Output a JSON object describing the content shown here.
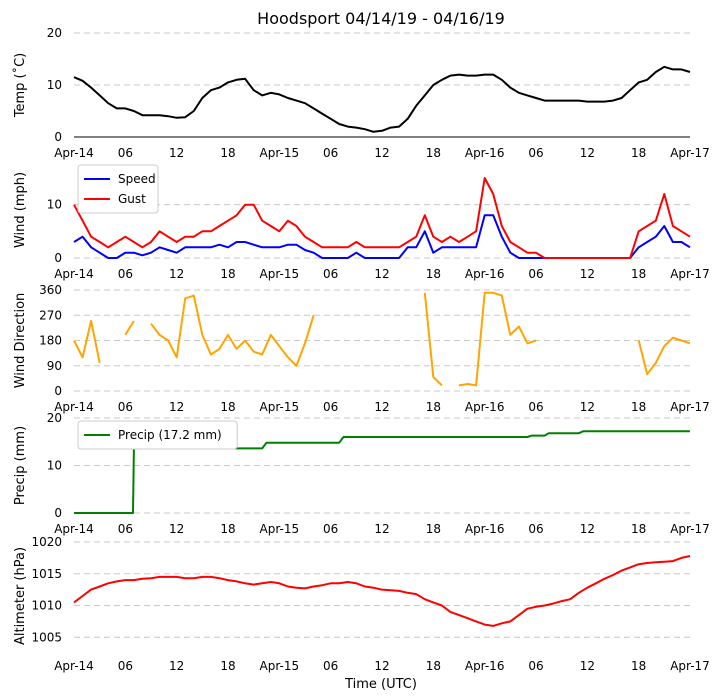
{
  "figure": {
    "title": "Hoodsport 04/14/19 - 04/16/19",
    "xlabel": "Time (UTC)"
  },
  "x_axis": {
    "tick_labels": [
      "Apr-14",
      "06",
      "12",
      "18",
      "Apr-15",
      "06",
      "12",
      "18",
      "Apr-16",
      "06",
      "12",
      "18",
      "Apr-17"
    ],
    "hours": [
      0,
      6,
      12,
      18,
      24,
      30,
      36,
      42,
      48,
      54,
      60,
      66,
      72
    ],
    "xlim": [
      0,
      72
    ]
  },
  "chart_data": [
    {
      "type": "line",
      "name": "temperature",
      "ylabel": "Temp ($^\\circ$C)",
      "ylabel_display": "Temp (˚C)",
      "ylim": [
        0,
        20
      ],
      "yticks": [
        0,
        10,
        20
      ],
      "grid": "y-dashed",
      "series": [
        {
          "name": "",
          "color": "#000000",
          "x": [
            0,
            1,
            2,
            3,
            4,
            5,
            6,
            7,
            8,
            9,
            10,
            11,
            12,
            13,
            14,
            15,
            16,
            17,
            18,
            19,
            20,
            21,
            22,
            23,
            24,
            25,
            26,
            27,
            28,
            29,
            30,
            31,
            32,
            33,
            34,
            35,
            36,
            37,
            38,
            39,
            40,
            41,
            42,
            43,
            44,
            45,
            46,
            47,
            48,
            49,
            50,
            51,
            52,
            53,
            54,
            55,
            56,
            57,
            58,
            59,
            60,
            61,
            62,
            63,
            64,
            65,
            66,
            67,
            68,
            69,
            70,
            71,
            72
          ],
          "y": [
            11.5,
            10.8,
            9.5,
            8,
            6.5,
            5.5,
            5.5,
            5,
            4.2,
            4.2,
            4.2,
            4,
            3.7,
            3.8,
            5,
            7.5,
            9,
            9.5,
            10.5,
            11,
            11.2,
            9,
            8,
            8.5,
            8.2,
            7.5,
            7,
            6.5,
            5.5,
            4.5,
            3.5,
            2.5,
            2,
            1.8,
            1.5,
            1,
            1.2,
            1.8,
            2,
            3.5,
            6,
            8,
            10,
            11,
            11.8,
            12,
            11.8,
            11.8,
            12,
            12,
            11,
            9.5,
            8.5,
            8,
            7.5,
            7,
            7,
            7,
            7,
            7,
            6.8,
            6.8,
            6.8,
            7,
            7.5,
            9,
            10.5,
            11,
            12.5,
            13.5,
            13,
            13,
            12.5
          ]
        }
      ]
    },
    {
      "type": "line",
      "name": "wind",
      "ylabel": "Wind (mph)",
      "ylim": [
        0,
        18
      ],
      "yticks": [
        0,
        10
      ],
      "grid": "y-dashed",
      "legend": "upper-left",
      "series": [
        {
          "name": "Speed",
          "color": "#0000ff",
          "x": [
            0,
            1,
            2,
            3,
            4,
            5,
            6,
            7,
            8,
            9,
            10,
            11,
            12,
            13,
            14,
            15,
            16,
            17,
            18,
            19,
            20,
            21,
            22,
            23,
            24,
            25,
            26,
            27,
            28,
            29,
            30,
            31,
            32,
            33,
            34,
            35,
            36,
            37,
            38,
            39,
            40,
            41,
            42,
            43,
            44,
            45,
            46,
            47,
            48,
            49,
            50,
            51,
            52,
            53,
            54,
            55,
            56,
            57,
            58,
            59,
            60,
            61,
            62,
            63,
            64,
            65,
            66,
            67,
            68,
            69,
            70,
            71,
            72
          ],
          "y": [
            3,
            4,
            2,
            1,
            0,
            0,
            1,
            1,
            0.5,
            1,
            2,
            1.5,
            1,
            2,
            2,
            2,
            2,
            2.5,
            2,
            3,
            3,
            2.5,
            2,
            2,
            2,
            2.5,
            2.5,
            1.5,
            1,
            0,
            0,
            0,
            0,
            1,
            0,
            0,
            0,
            0,
            0,
            2,
            2,
            5,
            1,
            2,
            2,
            2,
            2,
            2,
            8,
            8,
            4,
            1,
            0,
            0,
            0,
            0,
            0,
            0,
            0,
            0,
            0,
            0,
            0,
            0,
            0,
            0,
            2,
            3,
            4,
            6,
            3,
            3,
            2
          ]
        },
        {
          "name": "Gust",
          "color": "#ff0000",
          "x": [
            0,
            1,
            2,
            3,
            4,
            5,
            6,
            7,
            8,
            9,
            10,
            11,
            12,
            13,
            14,
            15,
            16,
            17,
            18,
            19,
            20,
            21,
            22,
            23,
            24,
            25,
            26,
            27,
            28,
            29,
            30,
            31,
            32,
            33,
            34,
            35,
            36,
            37,
            38,
            39,
            40,
            41,
            42,
            43,
            44,
            45,
            46,
            47,
            48,
            49,
            50,
            51,
            52,
            53,
            54,
            55,
            56,
            57,
            58,
            59,
            60,
            61,
            62,
            63,
            64,
            65,
            66,
            67,
            68,
            69,
            70,
            71,
            72
          ],
          "y": [
            10,
            7,
            4,
            3,
            2,
            3,
            4,
            3,
            2,
            3,
            5,
            4,
            3,
            4,
            4,
            5,
            5,
            6,
            7,
            8,
            10,
            10,
            7,
            6,
            5,
            7,
            6,
            4,
            3,
            2,
            2,
            2,
            2,
            3,
            2,
            2,
            2,
            2,
            2,
            3,
            4,
            8,
            4,
            3,
            4,
            3,
            4,
            5,
            15,
            12,
            6,
            3,
            2,
            1,
            1,
            0,
            0,
            0,
            0,
            0,
            0,
            0,
            0,
            0,
            0,
            0,
            5,
            6,
            7,
            12,
            6,
            5,
            4
          ]
        }
      ]
    },
    {
      "type": "line",
      "name": "wind_direction",
      "ylabel": "Wind Direction",
      "ylim": [
        0,
        360
      ],
      "yticks": [
        0,
        90,
        180,
        270,
        360
      ],
      "grid": "y-dashed",
      "series": [
        {
          "name": "",
          "color": "#ffa500",
          "x": [
            0,
            1,
            2,
            3,
            4,
            5,
            6,
            7,
            8,
            9,
            10,
            11,
            12,
            13,
            14,
            15,
            16,
            17,
            18,
            19,
            20,
            21,
            22,
            23,
            24,
            25,
            26,
            27,
            28,
            29,
            30,
            31,
            32,
            33,
            34,
            35,
            36,
            37,
            38,
            39,
            40,
            41,
            42,
            43,
            44,
            45,
            46,
            47,
            48,
            49,
            50,
            51,
            52,
            53,
            54,
            55,
            56,
            57,
            58,
            59,
            60,
            61,
            62,
            63,
            64,
            65,
            66,
            67,
            68,
            69,
            70,
            71,
            72
          ],
          "y": [
            180,
            120,
            250,
            100,
            null,
            null,
            200,
            250,
            null,
            240,
            200,
            180,
            120,
            330,
            340,
            200,
            130,
            150,
            200,
            150,
            180,
            140,
            130,
            200,
            160,
            120,
            90,
            170,
            270,
            null,
            null,
            220,
            null,
            null,
            null,
            null,
            null,
            240,
            null,
            null,
            null,
            350,
            50,
            20,
            null,
            20,
            25,
            20,
            350,
            350,
            340,
            200,
            230,
            170,
            180,
            null,
            null,
            null,
            null,
            null,
            null,
            null,
            null,
            null,
            null,
            null,
            180,
            60,
            100,
            160,
            190,
            180,
            170
          ]
        }
      ]
    },
    {
      "type": "line",
      "name": "precip",
      "ylabel": "Precip (mm)",
      "ylim": [
        0,
        20
      ],
      "yticks": [
        0,
        10,
        20
      ],
      "grid": "y-dashed",
      "legend": "upper-left",
      "series": [
        {
          "name": "Precip (17.2 mm)",
          "color": "#008000",
          "x": [
            0,
            6.9,
            7,
            22,
            22.5,
            31,
            31.5,
            53,
            53.5,
            55,
            55.5,
            59,
            59.5,
            72
          ],
          "y": [
            0,
            0,
            13.6,
            13.6,
            14.8,
            14.8,
            16,
            16,
            16.3,
            16.3,
            16.8,
            16.8,
            17.2,
            17.2
          ]
        }
      ]
    },
    {
      "type": "line",
      "name": "altimeter",
      "ylabel": "Altimeter (hPa)",
      "ylim": [
        1003,
        1020
      ],
      "yticks": [
        1005,
        1010,
        1015,
        1020
      ],
      "grid": "y-dashed",
      "series": [
        {
          "name": "",
          "color": "#ff0000",
          "x": [
            0,
            1,
            2,
            3,
            4,
            5,
            6,
            7,
            8,
            9,
            10,
            11,
            12,
            13,
            14,
            15,
            16,
            17,
            18,
            19,
            20,
            21,
            22,
            23,
            24,
            25,
            26,
            27,
            28,
            29,
            30,
            31,
            32,
            33,
            34,
            35,
            36,
            37,
            38,
            39,
            40,
            41,
            42,
            43,
            44,
            45,
            46,
            47,
            48,
            49,
            50,
            51,
            52,
            53,
            54,
            55,
            56,
            57,
            58,
            59,
            60,
            61,
            62,
            63,
            64,
            65,
            66,
            67,
            68,
            69,
            70,
            71,
            72
          ],
          "y": [
            1010.5,
            1011.5,
            1012.5,
            1013,
            1013.5,
            1013.8,
            1014,
            1014,
            1014.2,
            1014.3,
            1014.5,
            1014.5,
            1014.5,
            1014.3,
            1014.3,
            1014.5,
            1014.5,
            1014.3,
            1014,
            1013.8,
            1013.5,
            1013.3,
            1013.5,
            1013.7,
            1013.5,
            1013,
            1012.8,
            1012.7,
            1013,
            1013.2,
            1013.5,
            1013.5,
            1013.7,
            1013.5,
            1013,
            1012.8,
            1012.5,
            1012.4,
            1012.3,
            1012,
            1011.8,
            1011,
            1010.5,
            1010,
            1009,
            1008.5,
            1008,
            1007.5,
            1007,
            1006.8,
            1007.2,
            1007.5,
            1008.5,
            1009.5,
            1009.8,
            1010,
            1010.3,
            1010.7,
            1011,
            1012,
            1012.8,
            1013.5,
            1014.2,
            1014.8,
            1015.5,
            1016,
            1016.5,
            1016.7,
            1016.8,
            1016.9,
            1017,
            1017.5,
            1017.8
          ]
        }
      ]
    }
  ]
}
